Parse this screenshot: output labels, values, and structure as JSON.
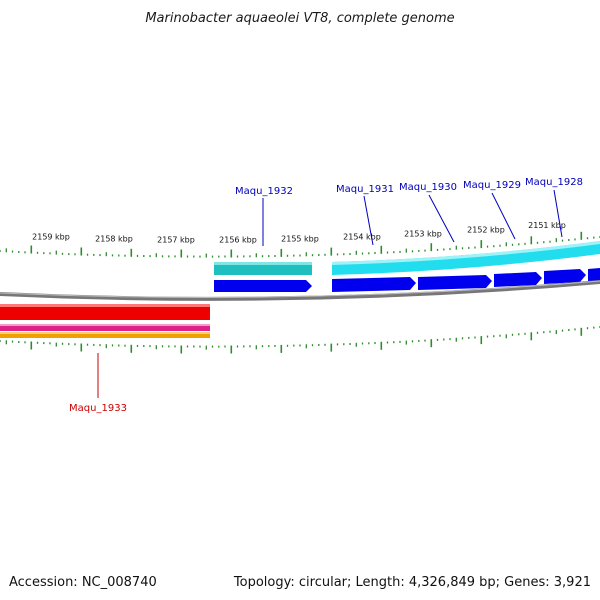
{
  "title": "Marinobacter aquaeolei VT8, complete genome",
  "footer": {
    "accession": "Accession: NC_008740",
    "topology": "Topology: circular; Length: 4,326,849 bp; Genes: 3,921"
  },
  "colors": {
    "tick": "#2e8b2e",
    "backbone": "#777777",
    "forward_cds": "#0000ee",
    "forward_track_dark": "#1fbfbf",
    "forward_track_light": "#22ddee",
    "reverse_cds": "#ee0000",
    "reverse_track_pink": "#e0208a",
    "reverse_track_orange": "#f0a000",
    "label_forward": "#0000bb",
    "label_reverse": "#cc0000"
  },
  "ticks": [
    {
      "label": "2159 kbp"
    },
    {
      "label": "2158 kbp"
    },
    {
      "label": "2157 kbp"
    },
    {
      "label": "2156 kbp"
    },
    {
      "label": "2155 kbp"
    },
    {
      "label": "2154 kbp"
    },
    {
      "label": "2153 kbp"
    },
    {
      "label": "2152 kbp"
    },
    {
      "label": "2151 kbp"
    }
  ],
  "genes": [
    {
      "name": "Maqu_1932",
      "strand": "forward"
    },
    {
      "name": "Maqu_1931",
      "strand": "forward"
    },
    {
      "name": "Maqu_1930",
      "strand": "forward"
    },
    {
      "name": "Maqu_1929",
      "strand": "forward"
    },
    {
      "name": "Maqu_1928",
      "strand": "forward"
    },
    {
      "name": "Maqu_1933",
      "strand": "reverse"
    }
  ]
}
